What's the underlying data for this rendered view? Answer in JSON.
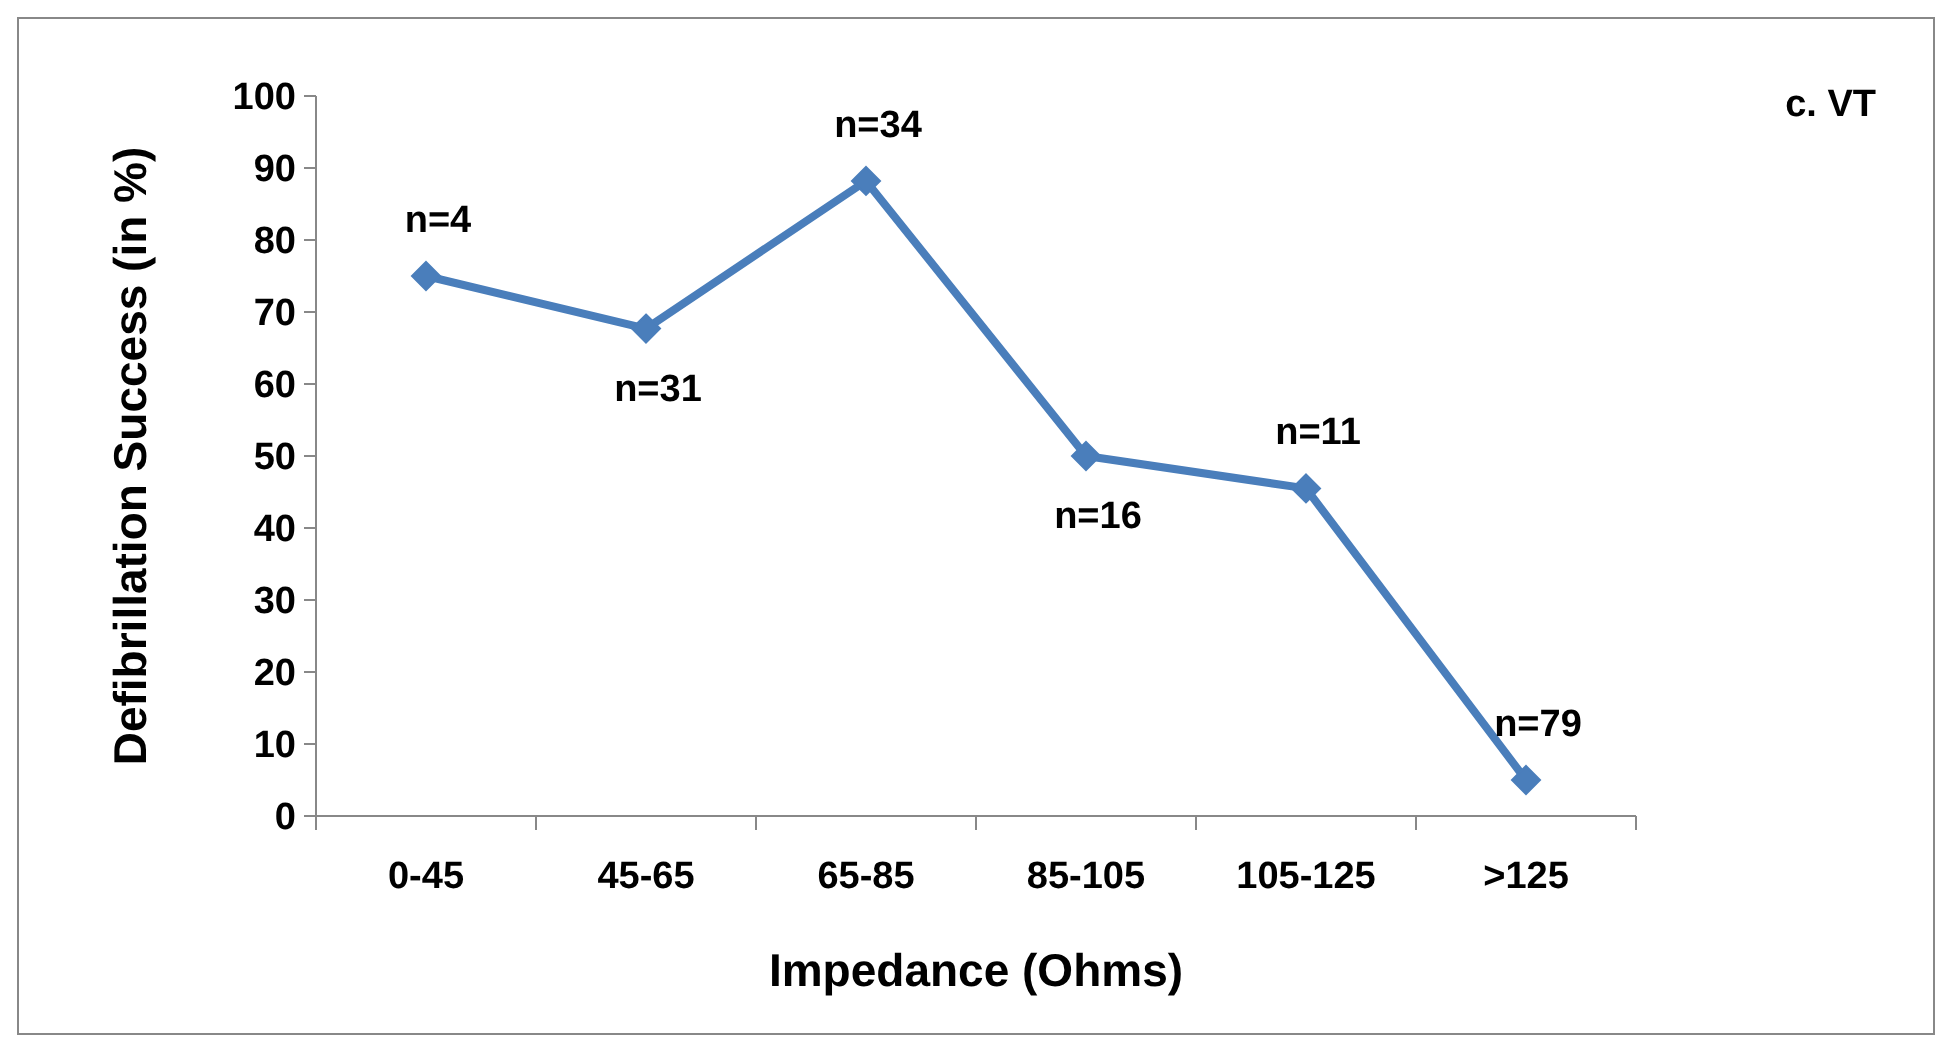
{
  "chart_data": {
    "type": "line",
    "title": "c. VT",
    "xlabel": "Impedance (Ohms)",
    "ylabel": "Defibrillation Success (in %)",
    "categories": [
      "0-45",
      "45-65",
      "65-85",
      "85-105",
      "105-125",
      ">125"
    ],
    "series": [
      {
        "color": "#4a7ebb",
        "values": [
          75,
          67.7,
          88.2,
          50,
          45.5,
          5
        ]
      }
    ],
    "ylim": [
      0,
      100
    ],
    "yticks": [
      0,
      10,
      20,
      30,
      40,
      50,
      60,
      70,
      80,
      90,
      100
    ],
    "grid": false,
    "marker": "diamond",
    "line_style": "solid",
    "annotations": [
      {
        "text": "n=4",
        "x": "0-45",
        "y": 75
      },
      {
        "text": "n=31",
        "x": "45-65",
        "y": 67.7
      },
      {
        "text": "n=34",
        "x": "65-85",
        "y": 88.2
      },
      {
        "text": "n=16",
        "x": "85-105",
        "y": 50
      },
      {
        "text": "n=11",
        "x": "105-125",
        "y": 45.5
      },
      {
        "text": "n=79",
        "x": ">125",
        "y": 5
      }
    ]
  }
}
